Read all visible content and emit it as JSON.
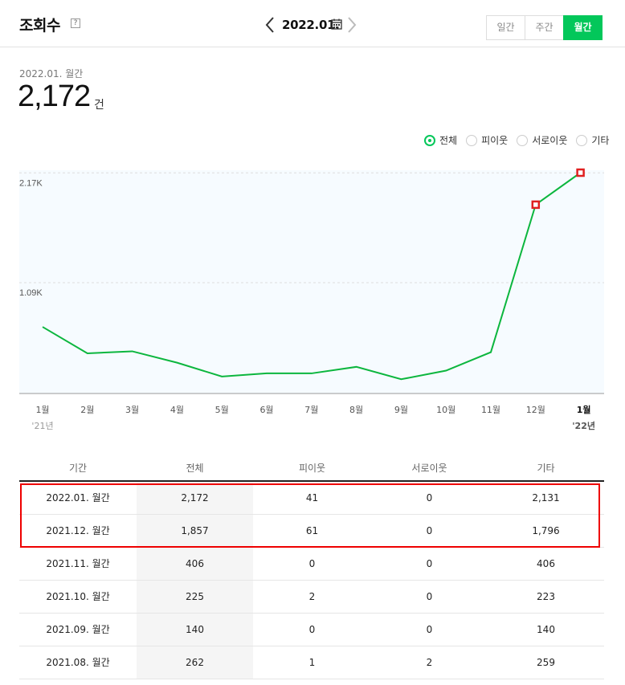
{
  "header": {
    "title": "조회수",
    "help_mark": "?",
    "current_period": "2022.01.",
    "period_tabs": [
      {
        "label": "일간",
        "active": false
      },
      {
        "label": "주간",
        "active": false
      },
      {
        "label": "월간",
        "active": true
      }
    ]
  },
  "summary": {
    "label": "2022.01. 월간",
    "value": "2,172",
    "unit": "건"
  },
  "filters": [
    {
      "label": "전체",
      "selected": true
    },
    {
      "label": "피이웃",
      "selected": false
    },
    {
      "label": "서로이웃",
      "selected": false
    },
    {
      "label": "기타",
      "selected": false
    }
  ],
  "chart_data": {
    "type": "line",
    "categories": [
      "1월",
      "2월",
      "3월",
      "4월",
      "5월",
      "6월",
      "7월",
      "8월",
      "9월",
      "10월",
      "11월",
      "12월",
      "1월"
    ],
    "year_labels": [
      "'21년",
      "",
      "",
      "",
      "",
      "",
      "",
      "",
      "",
      "",
      "",
      "",
      "'22년"
    ],
    "y_tick_labels": [
      "2.17K",
      "1.09K"
    ],
    "y_tick_values": [
      2170,
      1090
    ],
    "ylim": [
      0,
      2172
    ],
    "values": [
      655,
      395,
      415,
      303,
      167,
      198,
      198,
      262,
      140,
      225,
      406,
      1857,
      2172
    ],
    "highlighted_points": [
      11,
      12
    ],
    "line_color": "#0cb63e",
    "marker_color": "#e02020"
  },
  "table": {
    "columns": [
      "기간",
      "전체",
      "피이웃",
      "서로이웃",
      "기타"
    ],
    "rows": [
      [
        "2022.01. 월간",
        "2,172",
        "41",
        "0",
        "2,131"
      ],
      [
        "2021.12. 월간",
        "1,857",
        "61",
        "0",
        "1,796"
      ],
      [
        "2021.11. 월간",
        "406",
        "0",
        "0",
        "406"
      ],
      [
        "2021.10. 월간",
        "225",
        "2",
        "0",
        "223"
      ],
      [
        "2021.09. 월간",
        "140",
        "0",
        "0",
        "140"
      ],
      [
        "2021.08. 월간",
        "262",
        "1",
        "2",
        "259"
      ]
    ]
  },
  "colors": {
    "accent": "#03c75a",
    "highlight_box": "#e00000"
  }
}
